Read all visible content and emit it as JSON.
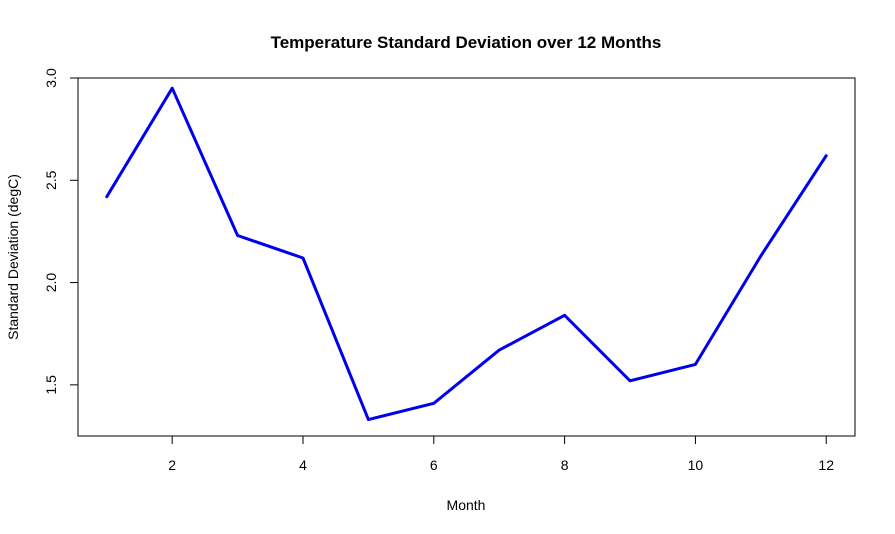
{
  "chart_data": {
    "type": "line",
    "title": "Temperature Standard Deviation over 12 Months",
    "xlabel": "Month",
    "ylabel": "Standard Deviation (degC)",
    "x": [
      1,
      2,
      3,
      4,
      5,
      6,
      7,
      8,
      9,
      10,
      11,
      12
    ],
    "series": [
      {
        "values": [
          2.42,
          2.95,
          2.23,
          2.12,
          1.33,
          1.41,
          1.67,
          1.84,
          1.52,
          1.6,
          2.13,
          2.62
        ],
        "color": "#0000EE"
      }
    ],
    "xlim": [
      0.56,
      12.44
    ],
    "ylim": [
      1.25,
      3.0
    ],
    "xticks": [
      2,
      4,
      6,
      8,
      10,
      12
    ],
    "yticks": [
      1.5,
      2.0,
      2.5,
      3.0
    ],
    "ytick_labels": [
      "1.5",
      "2.0",
      "2.5",
      "3.0"
    ],
    "xtick_labels": [
      "2",
      "4",
      "6",
      "8",
      "10",
      "12"
    ],
    "grid": false,
    "legend": "none"
  }
}
